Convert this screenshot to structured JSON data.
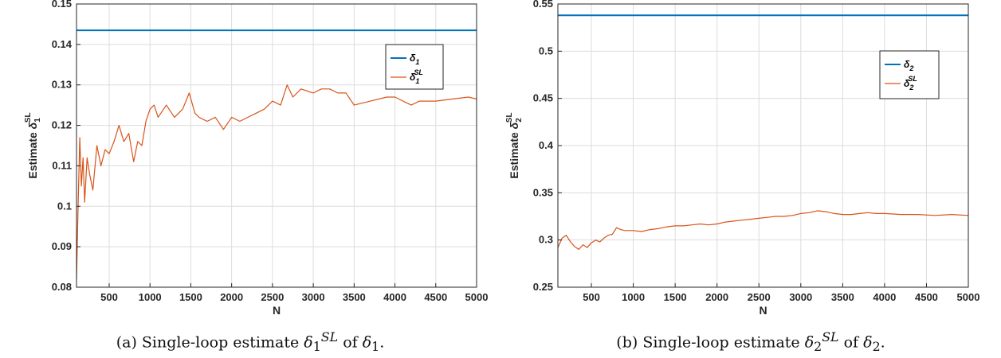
{
  "chart_data": [
    {
      "type": "line",
      "panel": "a",
      "xlabel": "N",
      "ylabel": "Estimate δ1SL",
      "xlim": [
        100,
        5000
      ],
      "ylim": [
        0.08,
        0.15
      ],
      "xticks": [
        500,
        1000,
        1500,
        2000,
        2500,
        3000,
        3500,
        4000,
        4500,
        5000
      ],
      "yticks": [
        0.08,
        0.09,
        0.1,
        0.11,
        0.12,
        0.13,
        0.14,
        0.15
      ],
      "xtick_labels": [
        "500",
        "1000",
        "1500",
        "2000",
        "2500",
        "3000",
        "3500",
        "4000",
        "4500",
        "5000"
      ],
      "ytick_labels": [
        "0.08",
        "0.09",
        "0.1",
        "0.11",
        "0.12",
        "0.13",
        "0.14",
        "0.15"
      ],
      "grid": true,
      "legend_position": "top-right",
      "series": [
        {
          "name": "δ1",
          "color": "#0072BD",
          "x": [
            100,
            5000
          ],
          "y": [
            0.1435,
            0.1435
          ]
        },
        {
          "name": "δ1SL",
          "color": "#D95319",
          "x": [
            100,
            120,
            140,
            160,
            180,
            200,
            230,
            260,
            300,
            350,
            400,
            450,
            500,
            560,
            620,
            680,
            740,
            800,
            850,
            900,
            950,
            1000,
            1050,
            1100,
            1200,
            1300,
            1400,
            1480,
            1550,
            1600,
            1700,
            1800,
            1900,
            2000,
            2100,
            2200,
            2300,
            2400,
            2500,
            2600,
            2680,
            2750,
            2850,
            3000,
            3100,
            3200,
            3300,
            3400,
            3500,
            3700,
            3900,
            4000,
            4100,
            4200,
            4300,
            4400,
            4500,
            4700,
            4900,
            5000
          ],
          "y": [
            0.082,
            0.1,
            0.117,
            0.105,
            0.112,
            0.101,
            0.112,
            0.108,
            0.104,
            0.115,
            0.11,
            0.114,
            0.113,
            0.116,
            0.12,
            0.116,
            0.118,
            0.111,
            0.116,
            0.115,
            0.121,
            0.124,
            0.125,
            0.122,
            0.125,
            0.122,
            0.124,
            0.128,
            0.123,
            0.122,
            0.121,
            0.122,
            0.119,
            0.122,
            0.121,
            0.122,
            0.123,
            0.124,
            0.126,
            0.125,
            0.13,
            0.127,
            0.129,
            0.128,
            0.129,
            0.129,
            0.128,
            0.128,
            0.125,
            0.126,
            0.127,
            0.127,
            0.126,
            0.125,
            0.126,
            0.126,
            0.126,
            0.1265,
            0.127,
            0.1265
          ]
        }
      ]
    },
    {
      "type": "line",
      "panel": "b",
      "xlabel": "N",
      "ylabel": "Estimate δ2SL",
      "xlim": [
        100,
        5000
      ],
      "ylim": [
        0.25,
        0.55
      ],
      "xticks": [
        500,
        1000,
        1500,
        2000,
        2500,
        3000,
        3500,
        4000,
        4500,
        5000
      ],
      "yticks": [
        0.25,
        0.3,
        0.35,
        0.4,
        0.45,
        0.5,
        0.55
      ],
      "xtick_labels": [
        "500",
        "1000",
        "1500",
        "2000",
        "2500",
        "3000",
        "3500",
        "4000",
        "4500",
        "5000"
      ],
      "ytick_labels": [
        "0.25",
        "0.3",
        "0.35",
        "0.4",
        "0.45",
        "0.5",
        "0.55"
      ],
      "grid": true,
      "legend_position": "top-right",
      "series": [
        {
          "name": "δ2",
          "color": "#0072BD",
          "x": [
            100,
            5000
          ],
          "y": [
            0.538,
            0.538
          ]
        },
        {
          "name": "δ2SL",
          "color": "#D95319",
          "x": [
            100,
            150,
            200,
            250,
            300,
            350,
            400,
            450,
            500,
            550,
            600,
            650,
            700,
            750,
            800,
            850,
            900,
            1000,
            1100,
            1200,
            1300,
            1400,
            1500,
            1600,
            1700,
            1800,
            1900,
            2000,
            2100,
            2200,
            2300,
            2400,
            2500,
            2600,
            2700,
            2800,
            2900,
            3000,
            3100,
            3200,
            3300,
            3400,
            3500,
            3600,
            3700,
            3800,
            3900,
            4000,
            4200,
            4400,
            4600,
            4800,
            5000
          ],
          "y": [
            0.292,
            0.302,
            0.305,
            0.298,
            0.293,
            0.29,
            0.295,
            0.292,
            0.297,
            0.3,
            0.298,
            0.302,
            0.305,
            0.306,
            0.313,
            0.311,
            0.31,
            0.31,
            0.309,
            0.311,
            0.312,
            0.314,
            0.315,
            0.315,
            0.316,
            0.317,
            0.316,
            0.317,
            0.319,
            0.32,
            0.321,
            0.322,
            0.323,
            0.324,
            0.325,
            0.325,
            0.326,
            0.328,
            0.329,
            0.331,
            0.33,
            0.328,
            0.327,
            0.327,
            0.328,
            0.329,
            0.328,
            0.328,
            0.327,
            0.327,
            0.326,
            0.327,
            0.326
          ]
        }
      ]
    }
  ],
  "captions": [
    {
      "label": "(a)",
      "prefix": "Single-loop estimate ",
      "sym": "δ",
      "sub": "1",
      "sup": "SL",
      "mid": " of ",
      "sym2": "δ",
      "sub2": "1",
      "end": "."
    },
    {
      "label": "(b)",
      "prefix": "Single-loop estimate ",
      "sym": "δ",
      "sub": "2",
      "sup": "SL",
      "mid": " of ",
      "sym2": "δ",
      "sub2": "2",
      "end": "."
    }
  ],
  "colors": {
    "axis": "#262626",
    "grid": "#dcdcdc",
    "series_exact": "#0072BD",
    "series_sl": "#D95319"
  }
}
